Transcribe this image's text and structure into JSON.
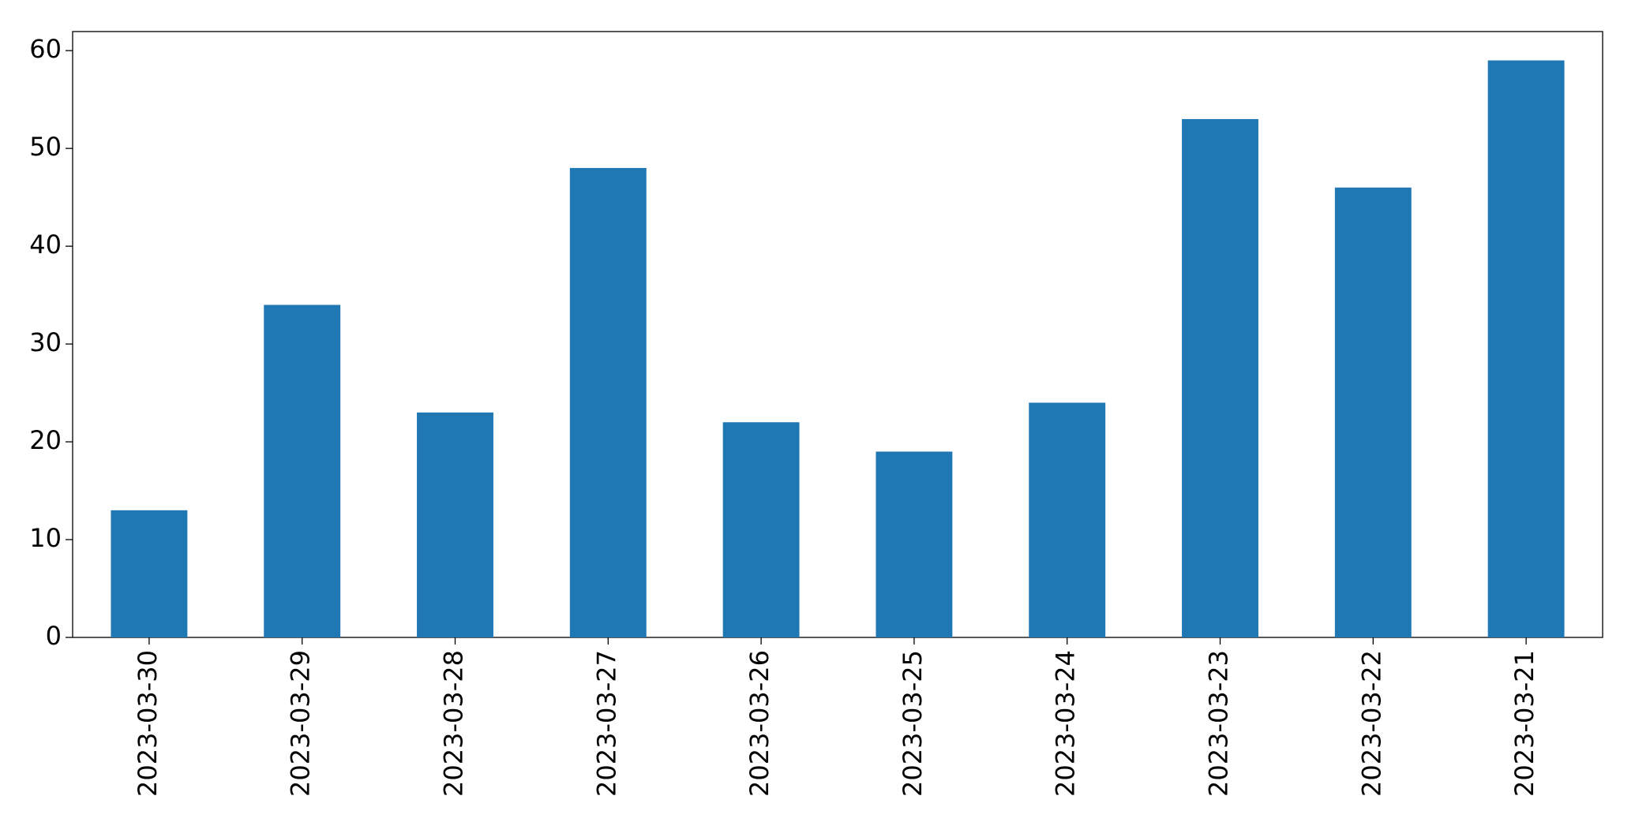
{
  "chart_data": {
    "type": "bar",
    "categories": [
      "2023-03-30",
      "2023-03-29",
      "2023-03-28",
      "2023-03-27",
      "2023-03-26",
      "2023-03-25",
      "2023-03-24",
      "2023-03-23",
      "2023-03-22",
      "2023-03-21"
    ],
    "values": [
      13,
      34,
      23,
      48,
      22,
      19,
      24,
      53,
      46,
      59
    ],
    "color": "#1f77b4",
    "ylim": [
      0,
      61.95
    ],
    "yticks": [
      0,
      10,
      20,
      30,
      40,
      50,
      60
    ],
    "grid": false
  }
}
